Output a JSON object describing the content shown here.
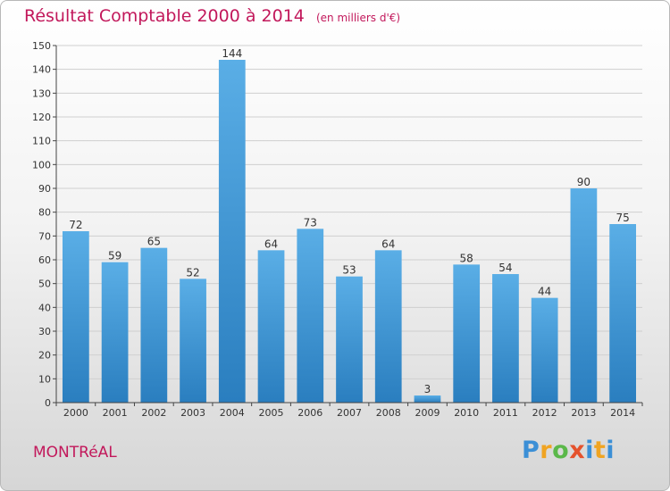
{
  "title": "Résultat Comptable 2000 à 2014",
  "subtitle": "(en milliers d'€)",
  "city": "MONTRéAL",
  "logo": {
    "letters": [
      "P",
      "r",
      "o",
      "x",
      "i",
      "t",
      "i"
    ]
  },
  "colors": {
    "title": "#c2185b",
    "bar_light": "#5aaee6",
    "bar_dark": "#2a7ebf",
    "grid": "#cfcfcf"
  },
  "chart_data": {
    "type": "bar",
    "title": "Résultat Comptable 2000 à 2014",
    "subtitle": "(en milliers d'€)",
    "xlabel": "",
    "ylabel": "",
    "ylim": [
      0,
      150
    ],
    "yticks": [
      0,
      10,
      20,
      30,
      40,
      50,
      60,
      70,
      80,
      90,
      100,
      110,
      120,
      130,
      140,
      150
    ],
    "grid": true,
    "categories": [
      "2000",
      "2001",
      "2002",
      "2003",
      "2004",
      "2005",
      "2006",
      "2007",
      "2008",
      "2009",
      "2010",
      "2011",
      "2012",
      "2013",
      "2014"
    ],
    "values": [
      72,
      59,
      65,
      52,
      144,
      64,
      73,
      53,
      64,
      3,
      58,
      54,
      44,
      90,
      75
    ]
  }
}
